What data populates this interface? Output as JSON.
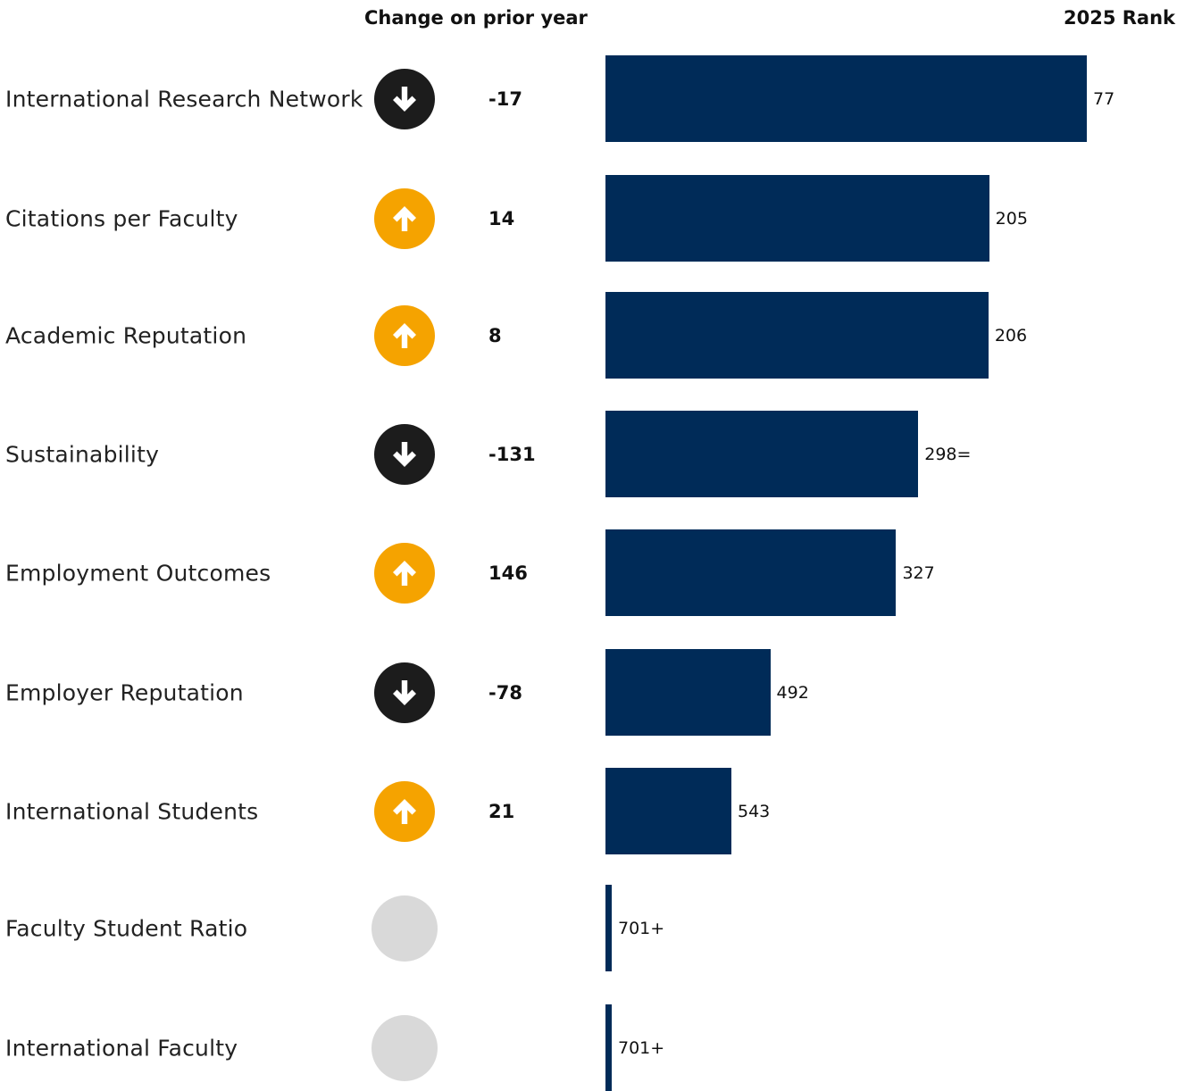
{
  "headers": {
    "change": "Change on prior year",
    "rank": "2025 Rank"
  },
  "colors": {
    "bar": "#002b58",
    "up": "#f5a300",
    "down": "#1c1c1c",
    "none": "#d9d9d9"
  },
  "rows": [
    {
      "label": "International Research Network",
      "direction": "down",
      "change": "-17",
      "rank_label": "77",
      "bar_value": 77
    },
    {
      "label": "Citations per Faculty",
      "direction": "up",
      "change": "14",
      "rank_label": "205",
      "bar_value": 205
    },
    {
      "label": "Academic Reputation",
      "direction": "up",
      "change": "8",
      "rank_label": "206",
      "bar_value": 206
    },
    {
      "label": "Sustainability",
      "direction": "down",
      "change": "-131",
      "rank_label": "298=",
      "bar_value": 298
    },
    {
      "label": "Employment Outcomes",
      "direction": "up",
      "change": "146",
      "rank_label": "327",
      "bar_value": 327
    },
    {
      "label": "Employer Reputation",
      "direction": "down",
      "change": "-78",
      "rank_label": "492",
      "bar_value": 492
    },
    {
      "label": "International Students",
      "direction": "up",
      "change": "21",
      "rank_label": "543",
      "bar_value": 543
    },
    {
      "label": "Faculty Student Ratio",
      "direction": "none",
      "change": "",
      "rank_label": "701+",
      "bar_value": 701
    },
    {
      "label": "International Faculty",
      "direction": "none",
      "change": "",
      "rank_label": "701+",
      "bar_value": 701
    }
  ],
  "chart_data": {
    "type": "bar",
    "orientation": "horizontal",
    "categories": [
      "International Research Network",
      "Citations per Faculty",
      "Academic Reputation",
      "Sustainability",
      "Employment Outcomes",
      "Employer Reputation",
      "International Students",
      "Faculty Student Ratio",
      "International Faculty"
    ],
    "values": [
      77,
      205,
      206,
      298,
      327,
      492,
      543,
      701,
      701
    ],
    "value_labels": [
      "77",
      "205",
      "206",
      "298=",
      "327",
      "492",
      "543",
      "701+",
      "701+"
    ],
    "change_on_prior_year": [
      "-17",
      "14",
      "8",
      "-131",
      "146",
      "-78",
      "21",
      "",
      ""
    ],
    "title": "",
    "xlabel": "2025 Rank",
    "ylabel": "",
    "legend": "none",
    "grid": false
  }
}
